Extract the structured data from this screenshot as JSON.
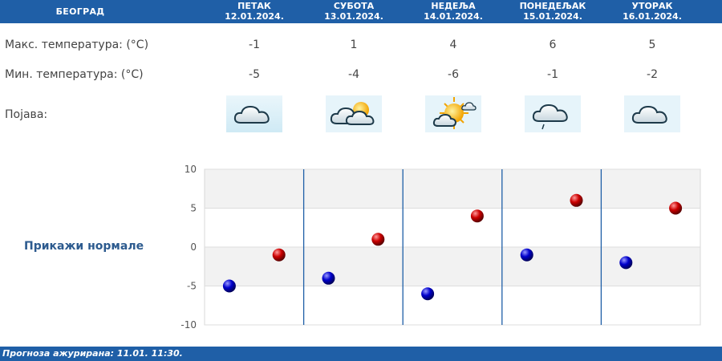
{
  "header": {
    "city": "БЕОГРАД"
  },
  "days": [
    {
      "name": "ПЕТАК",
      "date": "12.01.2024.",
      "max": "-1",
      "min": "-5",
      "icon": "cloud-icon"
    },
    {
      "name": "СУБОТА",
      "date": "13.01.2024.",
      "max": "1",
      "min": "-4",
      "icon": "partly-cloudy-icon"
    },
    {
      "name": "НЕДЕЉА",
      "date": "14.01.2024.",
      "max": "4",
      "min": "-6",
      "icon": "mostly-sunny-icon"
    },
    {
      "name": "ПОНЕДЕЉАК",
      "date": "15.01.2024.",
      "max": "6",
      "min": "-1",
      "icon": "cloud-light-rain-icon"
    },
    {
      "name": "УТОРАК",
      "date": "16.01.2024.",
      "max": "5",
      "min": "-2",
      "icon": "cloud-icon"
    }
  ],
  "labels": {
    "max": "Макс. температура: (°C)",
    "min": "Мин. температура: (°C)",
    "phenomenon": "Појава:"
  },
  "normals_link": "Прикажи нормале",
  "footer": "Прогноза ажурирана:  11.01. 11:30.",
  "colors": {
    "header": "#1f5fa7",
    "max_marker": "#cc0000",
    "min_marker": "#0000cc"
  },
  "chart_data": {
    "type": "scatter",
    "categories": [
      "12.01.2024.",
      "13.01.2024.",
      "14.01.2024.",
      "15.01.2024.",
      "16.01.2024."
    ],
    "series": [
      {
        "values": [
          -5,
          -4,
          -6,
          -1,
          -2
        ]
      },
      {
        "values": [
          -1,
          1,
          4,
          6,
          5
        ]
      }
    ],
    "y_ticks": [
      "10",
      "5",
      "0",
      "-5",
      "-10"
    ],
    "ylim": [
      -10,
      10
    ],
    "grid": true
  }
}
